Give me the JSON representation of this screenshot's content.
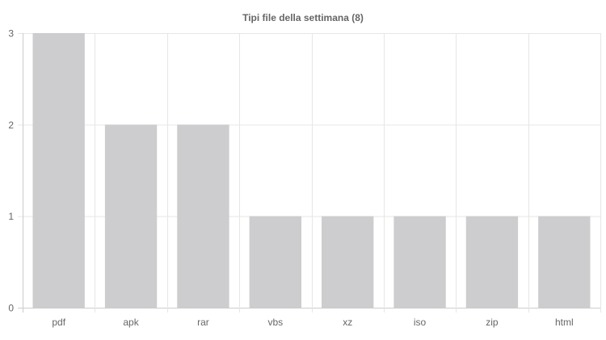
{
  "chart_data": {
    "type": "bar",
    "title": "Tipi file della settimana (8)",
    "categories": [
      "pdf",
      "apk",
      "rar",
      "vbs",
      "xz",
      "iso",
      "zip",
      "html"
    ],
    "values": [
      3,
      2,
      2,
      1,
      1,
      1,
      1,
      1
    ],
    "ylim": [
      0,
      3
    ],
    "yticks": [
      0,
      1,
      2,
      3
    ],
    "xlabel": "",
    "ylabel": "",
    "grid": true,
    "legend": "none",
    "bar_color": "#cdcdcf",
    "grid_color": "#e6e6e6",
    "axis_color": "#cccccc",
    "text_color": "#666666"
  }
}
